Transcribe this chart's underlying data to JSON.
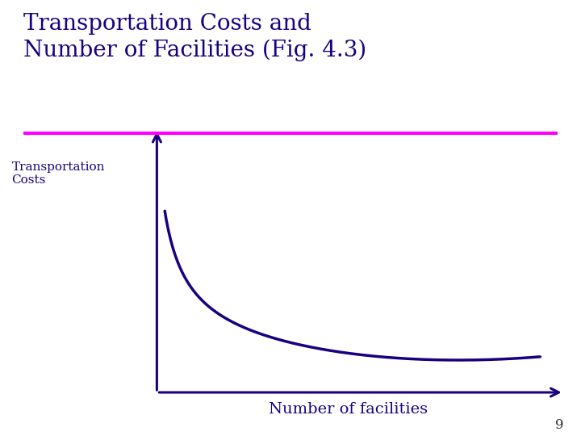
{
  "title_line1": "Transportation Costs and",
  "title_line2": "Number of Facilities (Fig. 4.3)",
  "title_color": "#1a0080",
  "title_fontsize": 20,
  "separator_color": "#ff00ff",
  "ylabel": "Transportation\nCosts",
  "xlabel": "Number of facilities",
  "label_color": "#1a0080",
  "ylabel_fontsize": 11,
  "xlabel_fontsize": 14,
  "curve_color": "#1a0080",
  "curve_linewidth": 2.5,
  "axis_color": "#1a0080",
  "axis_linewidth": 2.2,
  "background_color": "#ffffff",
  "page_number": "9",
  "page_number_color": "#333333",
  "page_number_fontsize": 12
}
